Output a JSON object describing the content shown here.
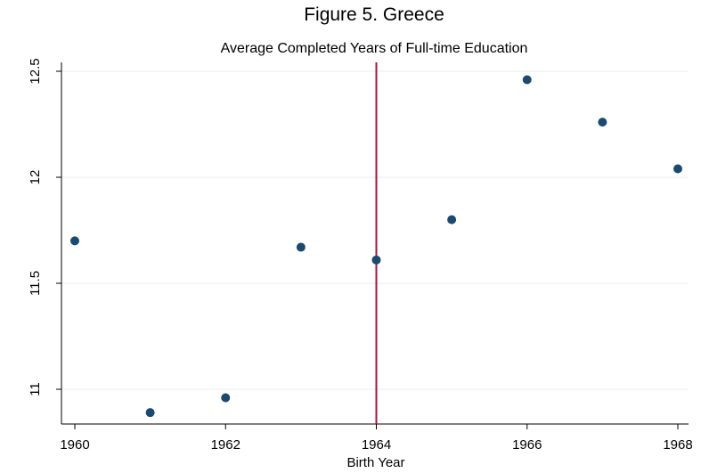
{
  "chart_data": {
    "type": "scatter",
    "title": "Figure 5. Greece",
    "subtitle": "Average Completed Years of Full-time Education",
    "xlabel": "Birth Year",
    "ylabel": "",
    "xlim": [
      1960,
      1968
    ],
    "ylim": [
      10.9,
      12.5
    ],
    "xticks": [
      1960,
      1962,
      1964,
      1966,
      1968
    ],
    "yticks": [
      {
        "value": 11,
        "label": "11"
      },
      {
        "value": 11.5,
        "label": "11.5"
      },
      {
        "value": 12,
        "label": "12"
      },
      {
        "value": 12.5,
        "label": "12.5"
      }
    ],
    "grid": "horizontal",
    "vline": {
      "x": 1964,
      "color": "#b0103a"
    },
    "marker_color": "#1a4a72",
    "points": [
      {
        "x": 1960,
        "y": 11.7
      },
      {
        "x": 1961,
        "y": 10.89
      },
      {
        "x": 1962,
        "y": 10.96
      },
      {
        "x": 1963,
        "y": 11.67
      },
      {
        "x": 1964,
        "y": 11.61
      },
      {
        "x": 1965,
        "y": 11.8
      },
      {
        "x": 1966,
        "y": 12.46
      },
      {
        "x": 1967,
        "y": 12.26
      },
      {
        "x": 1968,
        "y": 12.04
      }
    ]
  }
}
